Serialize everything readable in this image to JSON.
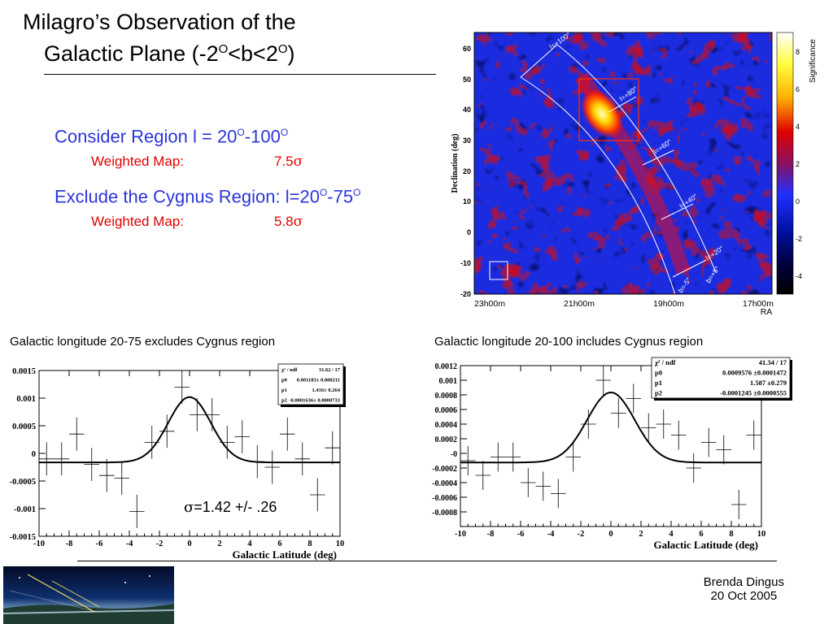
{
  "slide": {
    "title_line1": "Milagro’s Observation of the",
    "title_line2_pre": "Galactic Plane (-2",
    "title_line2_o1": "O",
    "title_line2_mid": "<b<2",
    "title_line2_o2": "O",
    "title_line2_post": ")",
    "bullet1_text": "Consider Region l = 20",
    "bullet1_o1": "O",
    "bullet1_mid": "-100",
    "bullet1_o2": "O",
    "sub1_label": "Weighted Map:",
    "sub1_value": "7.5",
    "sub1_sigma": "σ",
    "bullet2_text": "Exclude the Cygnus Region: l=20",
    "bullet2_o1": "O",
    "bullet2_mid": "-75",
    "bullet2_o2": "O",
    "sub2_label": "Weighted Map:",
    "sub2_value": "5.8",
    "sub2_sigma": "σ",
    "caption_left": "Galactic longitude 20-75 excludes Cygnus region",
    "caption_right": "Galactic longitude 20-100 includes Cygnus region",
    "sigma_note": "=1.42 +/- .26",
    "sigma_symbol": "σ",
    "author": "Brenda Dingus",
    "date": "20 Oct 2005"
  },
  "skymap": {
    "ylabel": "Declination (deg)",
    "yticks": [
      "60",
      "50",
      "40",
      "30",
      "20",
      "10",
      "0",
      "-10",
      "-20"
    ],
    "xticks": [
      "23h00m",
      "21h00m",
      "19h00m",
      "17h00m"
    ],
    "xlabel": "RA",
    "colorbar_label": "Significance",
    "colorbar_ticks": [
      "8",
      "6",
      "4",
      "2",
      "0",
      "-2",
      "-4"
    ],
    "band_labels": [
      "l=+100°",
      "l=+80°",
      "l=+60°",
      "l=+40°",
      "l=+20°",
      "b=+5°",
      "b=-5°"
    ]
  },
  "chart_data": [
    {
      "type": "scatter",
      "title": "",
      "xlabel": "Galactic Latitude (deg)",
      "ylabel": "",
      "xlim": [
        -10,
        10
      ],
      "ylim": [
        -0.0015,
        0.0015
      ],
      "xticks": [
        "-10",
        "-8",
        "-6",
        "-4",
        "-2",
        "0",
        "2",
        "4",
        "6",
        "8",
        "10"
      ],
      "yticks": [
        {
          "v": 0.0015,
          "t": "0.0015"
        },
        {
          "v": 0.001,
          "t": "0.001"
        },
        {
          "v": 0.0005,
          "t": "0.0005"
        },
        {
          "v": 0,
          "t": "0"
        },
        {
          "v": -0.0005,
          "t": "-0.0005"
        },
        {
          "v": -0.001,
          "t": "-0.001"
        },
        {
          "v": -0.0015,
          "t": "-0.0015"
        }
      ],
      "points": [
        {
          "x": -9.5,
          "y": -0.0001,
          "e": 0.0003
        },
        {
          "x": -8.5,
          "y": -0.0001,
          "e": 0.0003
        },
        {
          "x": -7.5,
          "y": 0.00035,
          "e": 0.0003
        },
        {
          "x": -6.5,
          "y": -0.0002,
          "e": 0.0003
        },
        {
          "x": -5.5,
          "y": -0.0004,
          "e": 0.0003
        },
        {
          "x": -4.5,
          "y": -0.00045,
          "e": 0.0003
        },
        {
          "x": -3.5,
          "y": -0.00105,
          "e": 0.0003
        },
        {
          "x": -2.5,
          "y": 0.0002,
          "e": 0.0003
        },
        {
          "x": -1.5,
          "y": 0.0004,
          "e": 0.0003
        },
        {
          "x": -0.5,
          "y": 0.0012,
          "e": 0.0003
        },
        {
          "x": 0.5,
          "y": 0.0007,
          "e": 0.0003
        },
        {
          "x": 1.5,
          "y": 0.0007,
          "e": 0.0003
        },
        {
          "x": 2.5,
          "y": 0.0002,
          "e": 0.0003
        },
        {
          "x": 3.5,
          "y": 0.0003,
          "e": 0.0003
        },
        {
          "x": 4.5,
          "y": -0.00015,
          "e": 0.0003
        },
        {
          "x": 5.5,
          "y": -0.00025,
          "e": 0.0003
        },
        {
          "x": 6.5,
          "y": 0.00035,
          "e": 0.0003
        },
        {
          "x": 7.5,
          "y": -0.0001,
          "e": 0.0003
        },
        {
          "x": 8.5,
          "y": -0.00075,
          "e": 0.0003
        },
        {
          "x": 9.5,
          "y": 0.0001,
          "e": 0.0003
        }
      ],
      "fit": {
        "p0": 0.001183,
        "p1": 1.416,
        "p2": -0.0001636
      },
      "stats": [
        {
          "label": "χ² / ndf",
          "value": "31.62 / 17"
        },
        {
          "label": "p0",
          "value": "0.001183± 0.000211"
        },
        {
          "label": "p1",
          "value": "1.416± 0.264"
        },
        {
          "label": "p2",
          "value": "-0.0001636± 0.0000733"
        }
      ]
    },
    {
      "type": "scatter",
      "title": "",
      "xlabel": "Galactic Latitude (deg)",
      "ylabel": "",
      "xlim": [
        -10,
        10
      ],
      "ylim": [
        -0.001,
        0.0012
      ],
      "xticks": [
        "-10",
        "-8",
        "-6",
        "-4",
        "-2",
        "0",
        "2",
        "4",
        "6",
        "8",
        "10"
      ],
      "yticks": [
        {
          "v": 0.0012,
          "t": "0.0012"
        },
        {
          "v": 0.001,
          "t": "0.001"
        },
        {
          "v": 0.0008,
          "t": "0.0008"
        },
        {
          "v": 0.0006,
          "t": "0.0006"
        },
        {
          "v": 0.0004,
          "t": "0.0004"
        },
        {
          "v": 0.0002,
          "t": "0.0002"
        },
        {
          "v": 0,
          "t": "-0"
        },
        {
          "v": -0.0002,
          "t": "-0.0002"
        },
        {
          "v": -0.0004,
          "t": "-0.0004"
        },
        {
          "v": -0.0006,
          "t": "-0.0006"
        },
        {
          "v": -0.0008,
          "t": "-0.0008"
        }
      ],
      "points": [
        {
          "x": -9.5,
          "y": -0.0001,
          "e": 0.0002
        },
        {
          "x": -8.5,
          "y": -0.0003,
          "e": 0.0002
        },
        {
          "x": -7.5,
          "y": -5e-05,
          "e": 0.0002
        },
        {
          "x": -6.5,
          "y": -5e-05,
          "e": 0.0002
        },
        {
          "x": -5.5,
          "y": -0.0004,
          "e": 0.0002
        },
        {
          "x": -4.5,
          "y": -0.00045,
          "e": 0.0002
        },
        {
          "x": -3.5,
          "y": -0.00055,
          "e": 0.0002
        },
        {
          "x": -2.5,
          "y": -5e-05,
          "e": 0.0002
        },
        {
          "x": -1.5,
          "y": 0.0004,
          "e": 0.0002
        },
        {
          "x": -0.5,
          "y": 0.001,
          "e": 0.0002
        },
        {
          "x": 0.5,
          "y": 0.00055,
          "e": 0.0002
        },
        {
          "x": 1.5,
          "y": 0.00075,
          "e": 0.0002
        },
        {
          "x": 2.5,
          "y": 0.00035,
          "e": 0.0002
        },
        {
          "x": 3.5,
          "y": 0.0004,
          "e": 0.0002
        },
        {
          "x": 4.5,
          "y": 0.00025,
          "e": 0.0002
        },
        {
          "x": 5.5,
          "y": -0.0002,
          "e": 0.0002
        },
        {
          "x": 6.5,
          "y": 0.00015,
          "e": 0.0002
        },
        {
          "x": 7.5,
          "y": 5e-05,
          "e": 0.0002
        },
        {
          "x": 8.5,
          "y": -0.0007,
          "e": 0.0002
        },
        {
          "x": 9.5,
          "y": 0.00025,
          "e": 0.0002
        }
      ],
      "fit": {
        "p0": 0.0009576,
        "p1": 1.587,
        "p2": -0.0001245
      },
      "stats": [
        {
          "label": "χ² / ndf",
          "value": "41.34 / 17"
        },
        {
          "label": "p0",
          "value": "0.0009576 ±0.0001472"
        },
        {
          "label": "p1",
          "value": "1.587 ±0.279"
        },
        {
          "label": "p2",
          "value": "-0.0001245 ±0.0000555"
        }
      ]
    }
  ]
}
